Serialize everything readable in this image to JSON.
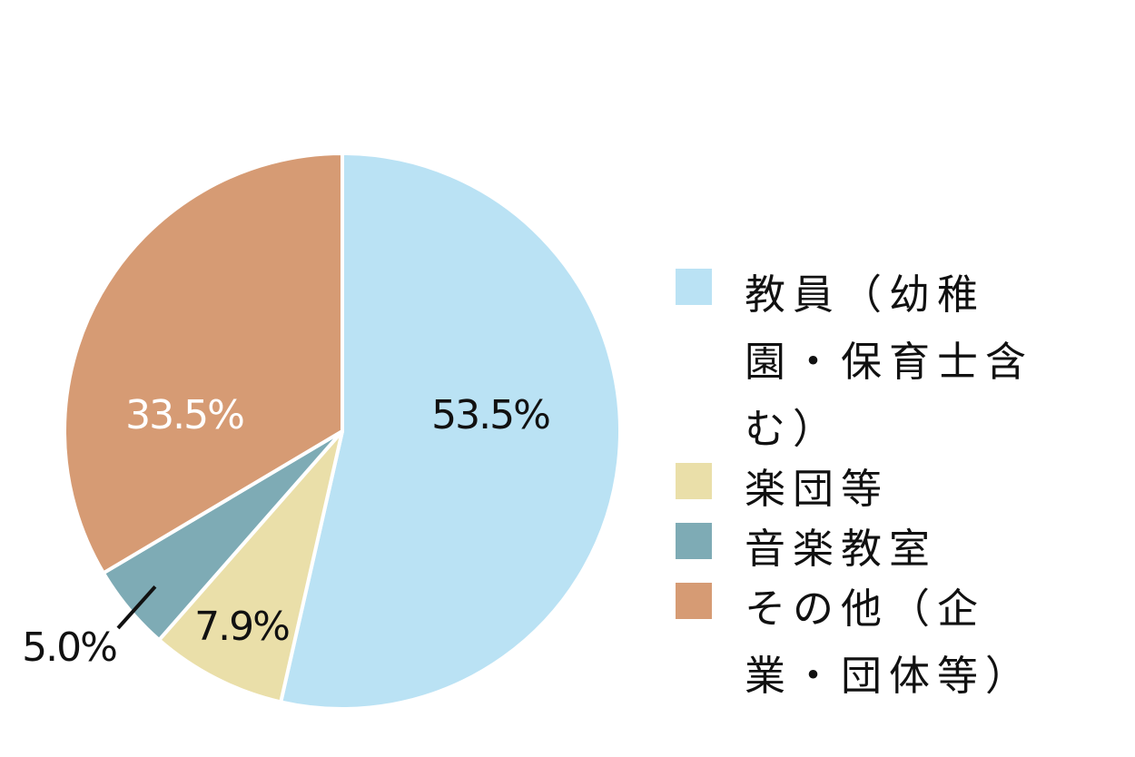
{
  "chart_data": {
    "type": "pie",
    "slices": [
      {
        "label": "教員（幼稚園・保育士含む）",
        "value": 53.5,
        "display": "53.5%",
        "color": "#bae2f4",
        "text_color": "#111111"
      },
      {
        "label": "楽団等",
        "value": 7.9,
        "display": "7.9%",
        "color": "#eadfa9",
        "text_color": "#111111"
      },
      {
        "label": "音楽教室",
        "value": 5.0,
        "display": "5.0%",
        "color": "#7eabb5",
        "text_color": "#111111"
      },
      {
        "label": "その他（企業・団体等）",
        "value": 33.5,
        "display": "33.5%",
        "color": "#d69b74",
        "text_color": "#ffffff"
      }
    ],
    "start": "12 o'clock",
    "direction": "clockwise",
    "legend_position": "right"
  }
}
